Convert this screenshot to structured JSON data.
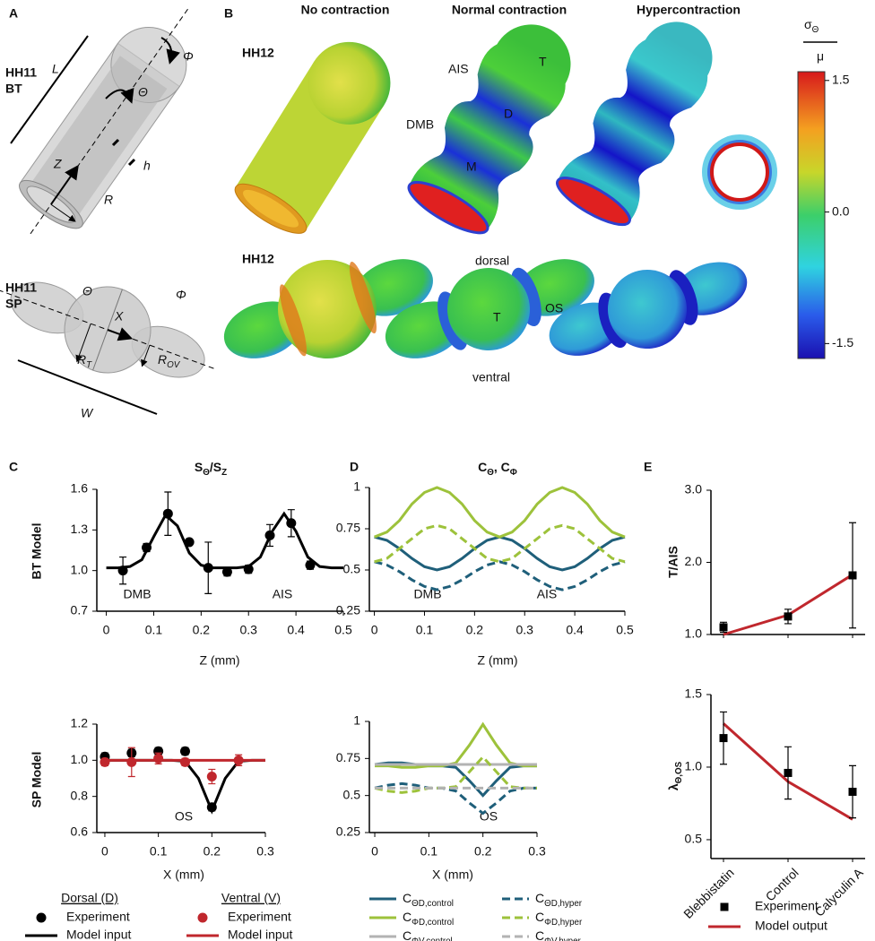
{
  "panel_labels": [
    "A",
    "B",
    "C",
    "D",
    "E"
  ],
  "panel_a": {
    "bt_label": [
      "HH11",
      "BT"
    ],
    "sp_label": [
      "HH11",
      "SP"
    ],
    "bt_symbols": [
      "L",
      "Φ",
      "Θ",
      "Z",
      "R",
      "h"
    ],
    "sp_symbols": [
      "Θ",
      "Φ",
      "X",
      [
        "R",
        "T"
      ],
      [
        "R",
        "OV"
      ],
      "W"
    ]
  },
  "panel_b": {
    "columns": [
      "No contraction",
      "Normal contraction",
      "Hypercontraction"
    ],
    "rows": [
      "HH12",
      "HH12"
    ],
    "annotations": [
      "AIS",
      "T",
      "D",
      "DMB",
      "M",
      "dorsal",
      "T",
      "OS",
      "ventral"
    ],
    "colorbar": {
      "label": [
        "σ",
        "Θ"
      ],
      "denominator": "μ",
      "lim": [
        -1.67,
        1.6
      ],
      "ticks": [
        1.5,
        {
          "value": 0,
          "label": "0.0"
        },
        -1.5
      ]
    }
  },
  "chart_data": [
    {
      "type": "line",
      "title": [
        "S",
        "Θ",
        "/S",
        "Z"
      ],
      "ylabel": "BT Model",
      "xlabel": "Z (mm)",
      "xlim": [
        -0.02,
        0.5
      ],
      "xticks": [
        0,
        0.1,
        0.2,
        0.3,
        0.4,
        0.5
      ],
      "ylim": [
        0.7,
        1.6
      ],
      "yticks": [
        0.7,
        {
          "value": 1,
          "label": "1.0"
        },
        1.3,
        1.6
      ],
      "annotations": [
        "DMB",
        "AIS"
      ],
      "series": [
        {
          "color": "#000000",
          "marker": "circle",
          "x": [
            0.035,
            0.085,
            0.13,
            0.175,
            0.215,
            0.255,
            0.3,
            0.345,
            0.39,
            0.43
          ],
          "values": [
            1.0,
            1.17,
            1.42,
            1.21,
            1.02,
            0.99,
            1.01,
            1.26,
            1.35,
            1.04
          ],
          "errors": [
            0.1,
            0.03,
            0.16,
            0.02,
            0.19,
            0.03,
            0.03,
            0.08,
            0.1,
            0.03
          ]
        },
        {
          "color": "#000000",
          "line": "solid",
          "x": [
            0,
            0.025,
            0.05,
            0.075,
            0.1,
            0.125,
            0.15,
            0.175,
            0.2,
            0.225,
            0.25,
            0.275,
            0.3,
            0.325,
            0.35,
            0.375,
            0.4,
            0.425,
            0.45,
            0.475,
            0.5
          ],
          "values": [
            1.02,
            1.02,
            1.03,
            1.08,
            1.25,
            1.41,
            1.33,
            1.13,
            1.04,
            1.02,
            1.02,
            1.02,
            1.03,
            1.1,
            1.29,
            1.42,
            1.29,
            1.1,
            1.03,
            1.02,
            1.02
          ]
        }
      ]
    },
    {
      "type": "line",
      "ylabel": "SP Model",
      "xlabel": "X (mm)",
      "xlim": [
        -0.015,
        0.3
      ],
      "xticks": [
        0,
        0.1,
        0.2,
        0.3
      ],
      "ylim": [
        0.6,
        1.2
      ],
      "yticks": [
        0.6,
        0.8,
        {
          "value": 1,
          "label": "1.0"
        },
        1.2
      ],
      "annotations": [
        "OS"
      ],
      "legend_groups": [
        "Dorsal (D)",
        "Ventral (V)"
      ],
      "series": [
        {
          "name": "Experiment",
          "color": "#000000",
          "marker": "circle",
          "x": [
            0,
            0.05,
            0.1,
            0.15,
            0.2
          ],
          "values": [
            1.02,
            1.04,
            1.05,
            1.05,
            0.74
          ],
          "errors": [
            0.02,
            0.02,
            0.02,
            0.02,
            0.02
          ]
        },
        {
          "name": "Model input",
          "color": "#000000",
          "line": "solid",
          "x": [
            0,
            0.025,
            0.05,
            0.075,
            0.1,
            0.125,
            0.15,
            0.175,
            0.2,
            0.225,
            0.25,
            0.275,
            0.3
          ],
          "values": [
            1,
            1,
            1,
            1,
            1,
            1,
            0.995,
            0.9,
            0.72,
            0.9,
            0.995,
            1,
            1
          ]
        },
        {
          "name": "Experiment",
          "color": "#c0272d",
          "marker": "circle",
          "x": [
            0,
            0.05,
            0.1,
            0.15,
            0.2,
            0.25
          ],
          "values": [
            0.99,
            0.99,
            1.01,
            0.99,
            0.91,
            1.0
          ],
          "errors": [
            0.02,
            0.08,
            0.03,
            0.02,
            0.04,
            0.03
          ]
        },
        {
          "name": "Model input",
          "color": "#c0272d",
          "line": "solid",
          "x": [
            0,
            0.3
          ],
          "values": [
            1,
            1
          ]
        }
      ]
    },
    {
      "type": "line",
      "title": [
        "C",
        "Θ",
        ", C",
        "Φ"
      ],
      "xlabel": "Z (mm)",
      "xlim": [
        -0.01,
        0.5
      ],
      "xticks": [
        0,
        0.1,
        0.2,
        0.3,
        0.4,
        0.5
      ],
      "ylim": [
        0.25,
        1
      ],
      "yticks": [
        0.25,
        0.5,
        0.75,
        1
      ],
      "annotations": [
        "DMB",
        "AIS"
      ],
      "x": [
        0,
        0.025,
        0.05,
        0.075,
        0.1,
        0.125,
        0.15,
        0.175,
        0.2,
        0.225,
        0.25,
        0.275,
        0.3,
        0.325,
        0.35,
        0.375,
        0.4,
        0.425,
        0.45,
        0.475,
        0.5
      ],
      "series": [
        {
          "color": "#1f5f7a",
          "line": "solid",
          "values": [
            0.7,
            0.68,
            0.63,
            0.57,
            0.52,
            0.5,
            0.52,
            0.57,
            0.63,
            0.68,
            0.7,
            0.68,
            0.63,
            0.57,
            0.52,
            0.5,
            0.52,
            0.57,
            0.63,
            0.68,
            0.7
          ]
        },
        {
          "color": "#9dc23b",
          "line": "solid",
          "values": [
            0.7,
            0.73,
            0.8,
            0.9,
            0.97,
            1.0,
            0.97,
            0.9,
            0.8,
            0.73,
            0.7,
            0.73,
            0.8,
            0.9,
            0.97,
            1.0,
            0.97,
            0.9,
            0.8,
            0.73,
            0.7
          ]
        },
        {
          "color": "#1f5f7a",
          "line": "dashed",
          "values": [
            0.55,
            0.53,
            0.49,
            0.44,
            0.4,
            0.38,
            0.4,
            0.44,
            0.49,
            0.53,
            0.55,
            0.53,
            0.49,
            0.44,
            0.4,
            0.38,
            0.4,
            0.44,
            0.49,
            0.53,
            0.55
          ]
        },
        {
          "color": "#9dc23b",
          "line": "dashed",
          "values": [
            0.55,
            0.57,
            0.63,
            0.69,
            0.75,
            0.77,
            0.75,
            0.69,
            0.63,
            0.57,
            0.55,
            0.57,
            0.63,
            0.69,
            0.75,
            0.77,
            0.75,
            0.69,
            0.63,
            0.57,
            0.55
          ]
        }
      ]
    },
    {
      "type": "line",
      "xlabel": "X (mm)",
      "xlim": [
        -0.01,
        0.3
      ],
      "xticks": [
        0,
        0.1,
        0.2,
        0.3
      ],
      "ylim": [
        0.25,
        1
      ],
      "yticks": [
        0.25,
        0.5,
        0.75,
        1
      ],
      "annotations": [
        "OS"
      ],
      "x": [
        0,
        0.025,
        0.05,
        0.075,
        0.1,
        0.125,
        0.15,
        0.175,
        0.2,
        0.225,
        0.25,
        0.275,
        0.3
      ],
      "series": [
        {
          "name": [
            "C",
            "ΘD,control"
          ],
          "color": "#1f5f7a",
          "line": "solid",
          "values": [
            0.71,
            0.72,
            0.72,
            0.71,
            0.7,
            0.7,
            0.69,
            0.6,
            0.5,
            0.6,
            0.69,
            0.7,
            0.7
          ]
        },
        {
          "name": [
            "C",
            "ΦD,control"
          ],
          "color": "#9dc23b",
          "line": "solid",
          "values": [
            0.7,
            0.7,
            0.69,
            0.69,
            0.7,
            0.7,
            0.72,
            0.84,
            0.98,
            0.84,
            0.72,
            0.7,
            0.7
          ]
        },
        {
          "name": [
            "C",
            "ΦV,control"
          ],
          "color": "#b3b3b3",
          "line": "solid",
          "values": [
            0.71,
            0.71,
            0.71,
            0.71,
            0.71,
            0.71,
            0.71,
            0.71,
            0.71,
            0.71,
            0.71,
            0.71,
            0.71
          ]
        },
        {
          "name": [
            "C",
            "ΘD,hyper"
          ],
          "color": "#1f5f7a",
          "line": "dashed",
          "values": [
            0.55,
            0.57,
            0.58,
            0.57,
            0.55,
            0.55,
            0.53,
            0.45,
            0.38,
            0.45,
            0.53,
            0.55,
            0.55
          ]
        },
        {
          "name": [
            "C",
            "ΦD,hyper"
          ],
          "color": "#9dc23b",
          "line": "dashed",
          "values": [
            0.55,
            0.53,
            0.52,
            0.53,
            0.55,
            0.55,
            0.56,
            0.66,
            0.76,
            0.66,
            0.56,
            0.55,
            0.55
          ]
        },
        {
          "name": [
            "C",
            "ΦV,hyper"
          ],
          "color": "#b3b3b3",
          "line": "dashed",
          "values": [
            0.55,
            0.55,
            0.55,
            0.55,
            0.55,
            0.55,
            0.55,
            0.55,
            0.55,
            0.55,
            0.55,
            0.55,
            0.55
          ]
        }
      ]
    },
    {
      "type": "line",
      "ylabel": "T/AIS",
      "categories": [
        null,
        null,
        null
      ],
      "ylim": [
        1,
        3
      ],
      "yticks": [
        {
          "value": 1,
          "label": "1.0"
        },
        {
          "value": 2,
          "label": "2.0"
        },
        {
          "value": 3,
          "label": "3.0"
        }
      ],
      "series": [
        {
          "color": "#000000",
          "marker": "square",
          "values": [
            1.1,
            1.25,
            1.82
          ],
          "errors": [
            0.07,
            0.1,
            0.73
          ]
        },
        {
          "color": "#c0272d",
          "line": "solid",
          "values": [
            1.0,
            1.27,
            1.83
          ]
        }
      ]
    },
    {
      "type": "line",
      "ylabel": [
        "λ",
        "Θ,OS"
      ],
      "categories": [
        "Blebbistatin",
        "Control",
        "Calyculin A"
      ],
      "ylim": [
        0.37,
        1.5
      ],
      "yticks": [
        0.5,
        {
          "value": 1,
          "label": "1.0"
        },
        1.5
      ],
      "series": [
        {
          "name": "Experiment",
          "color": "#000000",
          "marker": "square",
          "values": [
            1.2,
            0.96,
            0.83
          ],
          "errors": [
            0.18,
            0.18,
            0.18
          ]
        },
        {
          "name": "Model output",
          "color": "#c0272d",
          "line": "solid",
          "values": [
            1.3,
            0.9,
            0.64
          ]
        }
      ]
    }
  ]
}
